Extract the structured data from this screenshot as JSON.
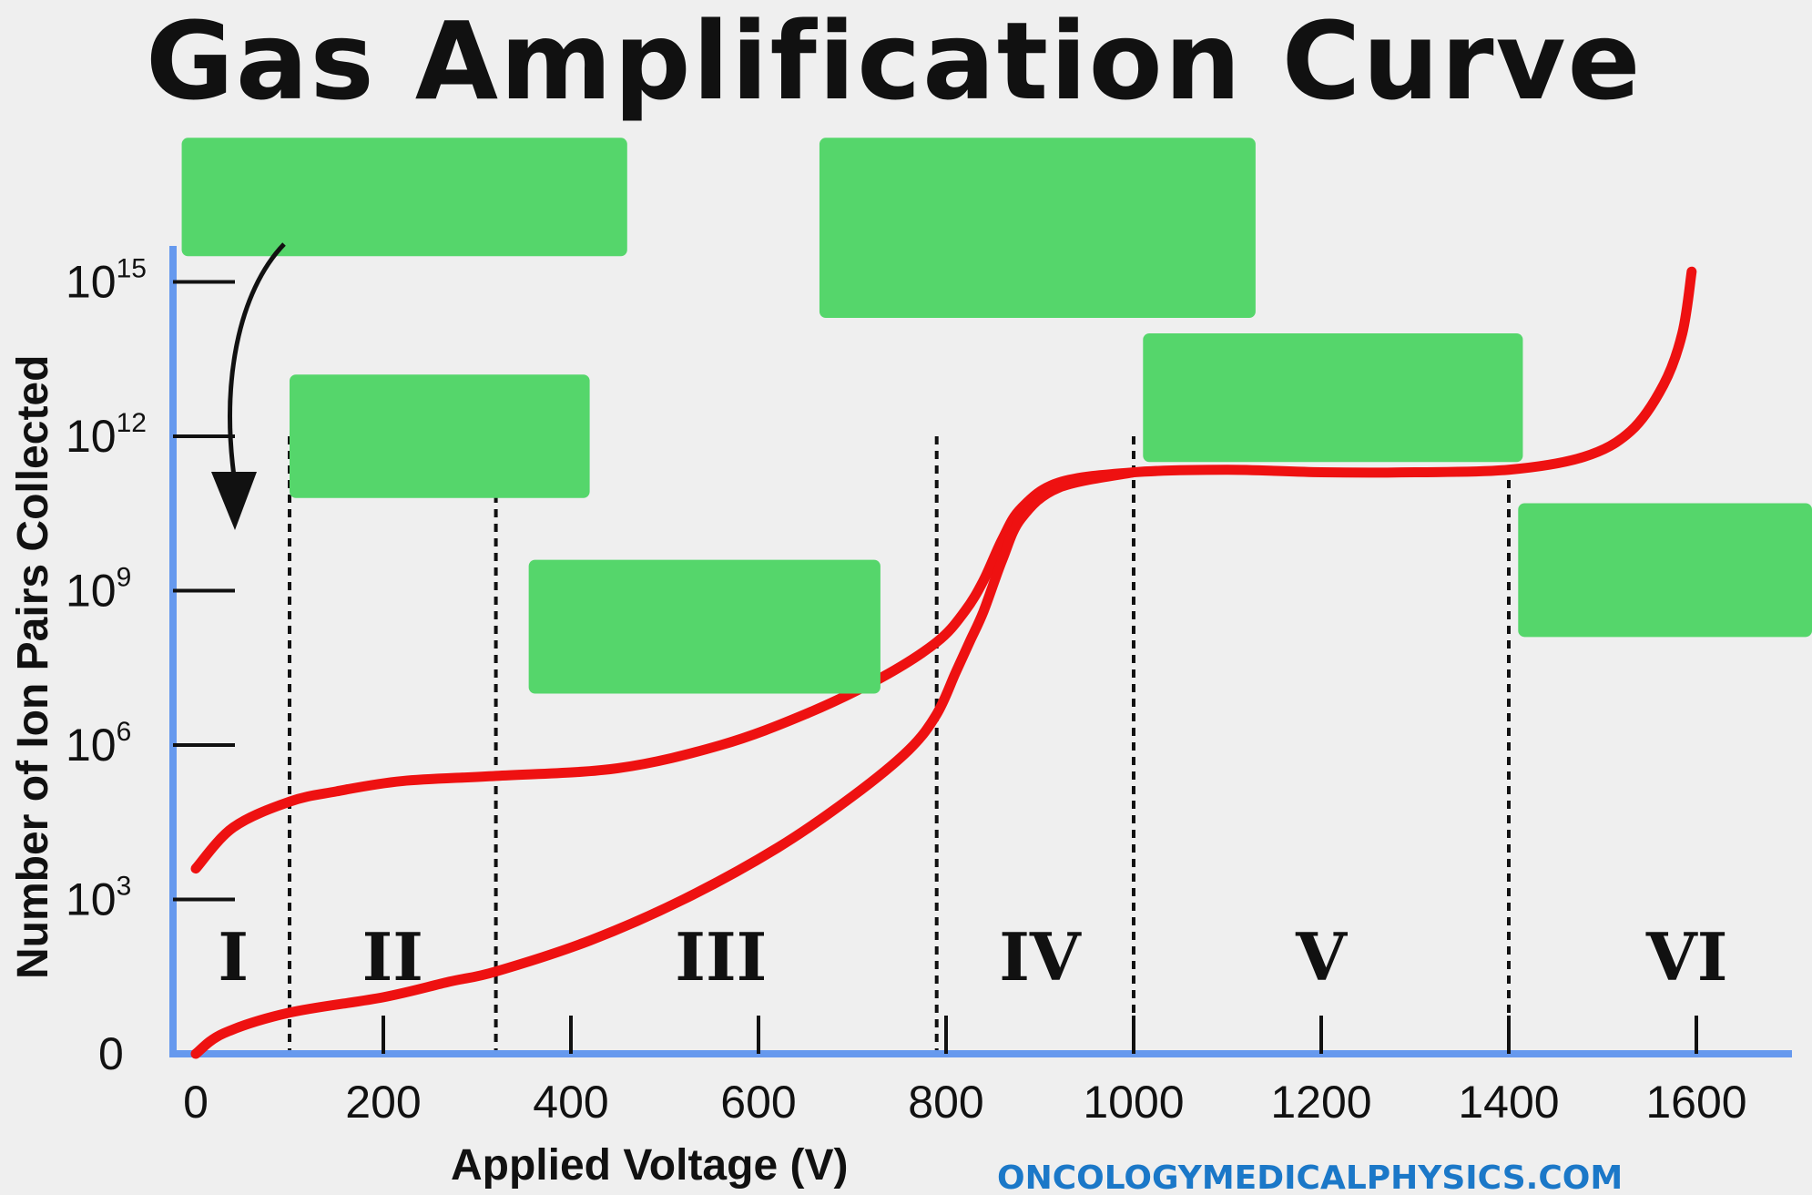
{
  "chart_data": {
    "type": "line",
    "title": "Gas Amplification Curve",
    "xlabel": "Applied Voltage (V)",
    "ylabel": "Number of Ion Pairs Collected",
    "x_ticks": [
      "0",
      "200",
      "400",
      "600",
      "800",
      "1000",
      "1200",
      "1400",
      "1600"
    ],
    "y_ticks": [
      {
        "base": "0",
        "exp": ""
      },
      {
        "base": "10",
        "exp": "3"
      },
      {
        "base": "10",
        "exp": "6"
      },
      {
        "base": "10",
        "exp": "9"
      },
      {
        "base": "10",
        "exp": "12"
      },
      {
        "base": "10",
        "exp": "15"
      }
    ],
    "x_range": [
      0,
      1700
    ],
    "y_range_log10": [
      0,
      15
    ],
    "region_labels": [
      "I",
      "II",
      "III",
      "IV",
      "V",
      "VI"
    ],
    "region_boundaries_V": [
      100,
      320,
      790,
      1000,
      1400
    ],
    "region_label_centers_V": [
      40,
      210,
      560,
      900,
      1200,
      1590
    ],
    "series": [
      {
        "x": [
          0,
          40,
          100,
          150,
          220,
          320,
          450,
          560,
          650,
          730,
          790,
          820,
          840,
          860,
          880,
          920,
          1000,
          1100,
          1200,
          1300,
          1400,
          1480,
          1530,
          1565,
          1585,
          1595
        ],
        "y_log10": [
          3.6,
          4.4,
          4.9,
          5.1,
          5.3,
          5.4,
          5.55,
          6.0,
          6.6,
          7.3,
          8.0,
          8.6,
          9.2,
          10.0,
          10.6,
          11.1,
          11.3,
          11.35,
          11.3,
          11.3,
          11.35,
          11.6,
          12.1,
          13.0,
          14.0,
          15.2
        ]
      },
      {
        "x": [
          0,
          30,
          100,
          200,
          270,
          320,
          420,
          520,
          620,
          700,
          760,
          790,
          810,
          825,
          840,
          860,
          880,
          920,
          1000
        ],
        "y_log10": [
          0.0,
          0.4,
          0.8,
          1.1,
          1.4,
          1.6,
          2.2,
          3.0,
          4.0,
          5.0,
          5.9,
          6.6,
          7.4,
          8.0,
          8.6,
          9.6,
          10.4,
          11.0,
          11.3
        ]
      }
    ],
    "grid": false,
    "legend": "none"
  },
  "annotation_boxes": [
    {
      "note": "green",
      "x_from": -15,
      "x_to": 460,
      "y_log10_top": 17.8,
      "y_log10_bottom": 15.5
    },
    {
      "note": "green",
      "x_from": 100,
      "x_to": 420,
      "y_log10_top": 13.2,
      "y_log10_bottom": 10.8
    },
    {
      "note": "green",
      "x_from": 355,
      "x_to": 730,
      "y_log10_top": 9.6,
      "y_log10_bottom": 7.0
    },
    {
      "note": "green",
      "x_from": 665,
      "x_to": 1130,
      "y_log10_top": 17.8,
      "y_log10_bottom": 14.3
    },
    {
      "note": "green",
      "x_from": 1010,
      "x_to": 1415,
      "y_log10_top": 14.0,
      "y_log10_bottom": 11.5
    },
    {
      "note": "green",
      "x_from": 1410,
      "x_to": 1750,
      "y_log10_top": 10.7,
      "y_log10_bottom": 8.1
    }
  ],
  "colors": {
    "axis": "#6699ee",
    "curve": "#ee1111",
    "box": "#55d66b",
    "credit": "#1b78c8"
  },
  "credit": "ONCOLOGYMEDICALPHYSICS.COM"
}
